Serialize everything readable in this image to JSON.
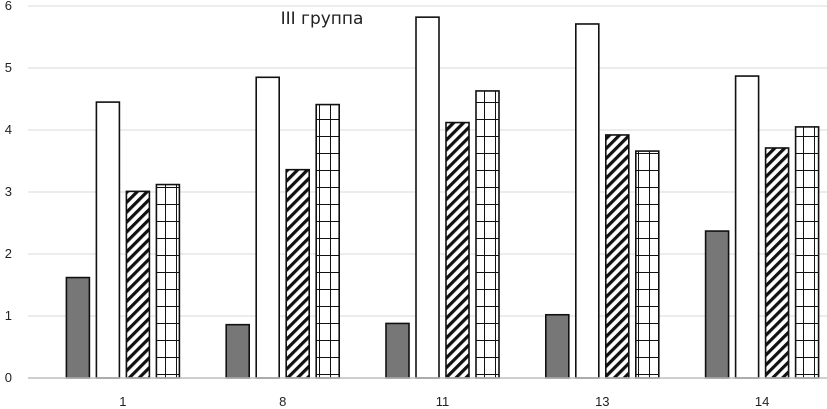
{
  "chart_data": {
    "type": "bar",
    "title": "III группа",
    "xlabel": "",
    "ylabel": "",
    "categories": [
      "1",
      "8",
      "11",
      "13",
      "14"
    ],
    "ylim": [
      0,
      6
    ],
    "yticks": [
      "0",
      "1",
      "2",
      "3",
      "4",
      "5",
      "6"
    ],
    "grid": true,
    "legend": "none",
    "series": [
      {
        "name": "series-1",
        "style": "solid-gray",
        "values": [
          1.62,
          0.86,
          0.88,
          1.02,
          2.37
        ]
      },
      {
        "name": "series-2",
        "style": "white",
        "values": [
          4.45,
          4.85,
          5.82,
          5.71,
          4.87
        ]
      },
      {
        "name": "series-3",
        "style": "diagonal-hatch",
        "values": [
          3.01,
          3.36,
          4.12,
          3.92,
          3.71
        ]
      },
      {
        "name": "series-4",
        "style": "grid-hatch",
        "values": [
          3.12,
          4.41,
          4.63,
          3.66,
          4.05
        ]
      }
    ],
    "colors": {
      "gray": "#777777",
      "stroke": "#111111",
      "grid": "#d9d9d9",
      "axis": "#bfbfbf"
    }
  }
}
